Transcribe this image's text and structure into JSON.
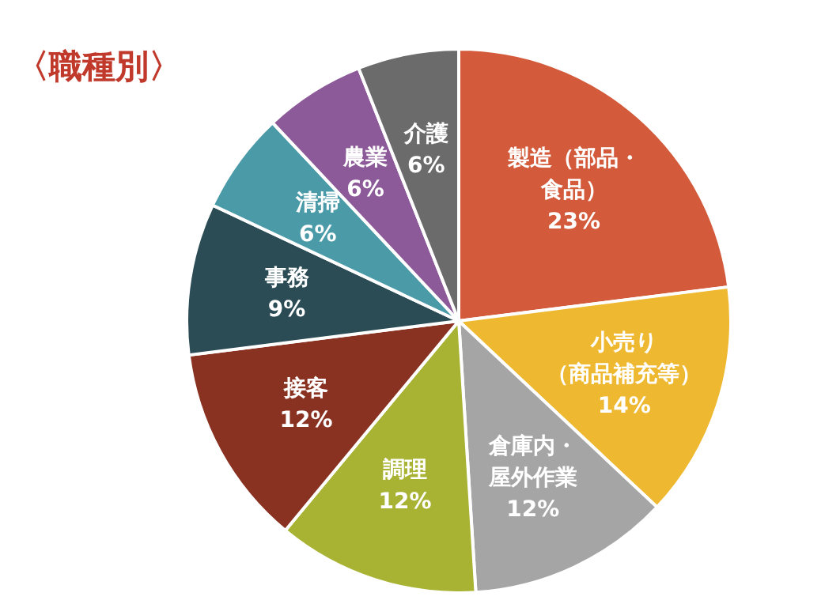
{
  "chart_data": {
    "type": "pie",
    "title": "〈職種別〉",
    "categories": [
      "製造（部品・食品）",
      "小売り（商品補充等）",
      "倉庫内・屋外作業",
      "調理",
      "接客",
      "事務",
      "清掃",
      "農業",
      "介護"
    ],
    "values": [
      23,
      14,
      12,
      12,
      12,
      9,
      6,
      6,
      6
    ],
    "value_labels": [
      "23%",
      "14%",
      "12%",
      "12%",
      "12%",
      "9%",
      "6%",
      "6%",
      "6%"
    ],
    "colors": [
      "#d35b3b",
      "#eeb930",
      "#a5a5a5",
      "#a9b333",
      "#8a3222",
      "#2b4c55",
      "#4b9aa8",
      "#8c5a98",
      "#6b6b6b"
    ],
    "legend": false
  }
}
